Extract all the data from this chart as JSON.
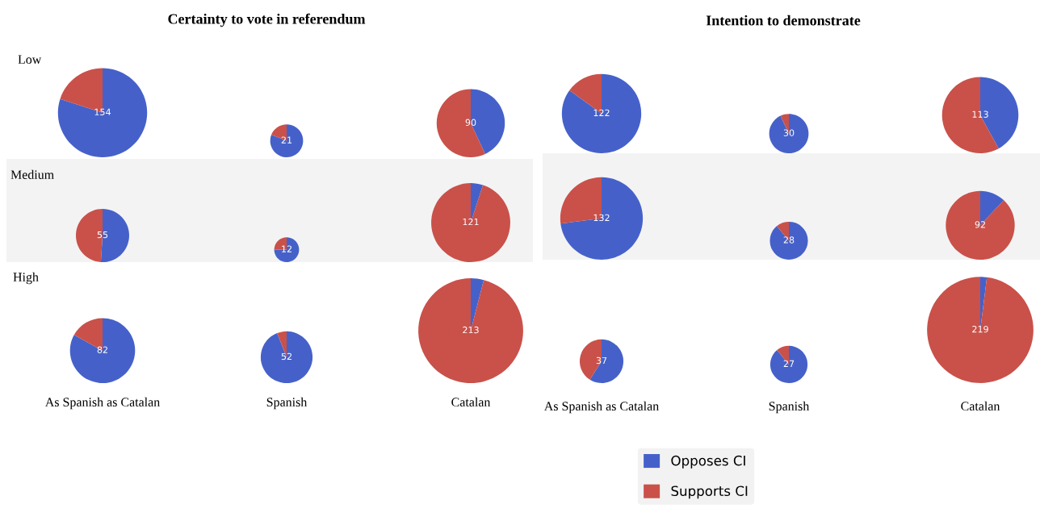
{
  "chart_data": [
    {
      "type": "other",
      "title": "Certainty to vote in referendum",
      "categories": [
        "As Spanish as Catalan",
        "Spanish",
        "Catalan"
      ],
      "annotations": [
        "Low",
        "Medium",
        "High"
      ]
    },
    {
      "type": "pie",
      "categories": [
        "Opposes CI",
        "Supports CI"
      ],
      "values": [
        80,
        20
      ],
      "colors": [
        "#4561c9",
        "#c9514a"
      ],
      "annotations": [
        "154"
      ],
      "legend": "bottom"
    },
    {
      "type": "pie",
      "categories": [
        null,
        null
      ],
      "values": [
        81,
        19
      ],
      "colors": [
        "#4561c9",
        "#c9514a"
      ],
      "annotations": [
        "21"
      ]
    },
    {
      "type": "pie",
      "categories": [
        null,
        null
      ],
      "values": [
        43,
        57
      ],
      "colors": [
        "#4561c9",
        "#c9514a"
      ],
      "annotations": [
        "90"
      ]
    },
    {
      "type": "pie",
      "categories": [
        null,
        null
      ],
      "values": [
        51,
        49
      ],
      "colors": [
        "#4561c9",
        "#c9514a"
      ],
      "annotations": [
        "55"
      ]
    },
    {
      "type": "pie",
      "categories": [
        null,
        null
      ],
      "values": [
        75,
        25
      ],
      "colors": [
        "#4561c9",
        "#c9514a"
      ],
      "annotations": [
        "12"
      ]
    },
    {
      "type": "pie",
      "categories": [
        null,
        null
      ],
      "values": [
        5,
        95
      ],
      "colors": [
        "#4561c9",
        "#c9514a"
      ],
      "annotations": [
        "121"
      ]
    },
    {
      "type": "pie",
      "categories": [
        null,
        null
      ],
      "values": [
        83,
        17
      ],
      "colors": [
        "#4561c9",
        "#c9514a"
      ],
      "annotations": [
        "82"
      ]
    },
    {
      "type": "pie",
      "categories": [
        null,
        null
      ],
      "values": [
        94,
        6
      ],
      "colors": [
        "#4561c9",
        "#c9514a"
      ],
      "annotations": [
        "52"
      ]
    },
    {
      "type": "pie",
      "categories": [
        null,
        null
      ],
      "values": [
        4,
        96
      ],
      "colors": [
        "#4561c9",
        "#c9514a"
      ],
      "annotations": [
        "213"
      ]
    },
    {
      "type": "other",
      "title": "Intention to demonstrate",
      "categories": [
        "As Spanish as Catalan",
        "Spanish",
        "Catalan"
      ]
    },
    {
      "type": "pie",
      "categories": [
        null,
        null
      ],
      "values": [
        85,
        15
      ],
      "colors": [
        "#4561c9",
        "#c9514a"
      ],
      "annotations": [
        "122"
      ]
    },
    {
      "type": "pie",
      "categories": [
        null,
        null
      ],
      "values": [
        93,
        7
      ],
      "colors": [
        "#4561c9",
        "#c9514a"
      ],
      "annotations": [
        "30"
      ]
    },
    {
      "type": "pie",
      "categories": [
        null,
        null
      ],
      "values": [
        42,
        58
      ],
      "colors": [
        "#4561c9",
        "#c9514a"
      ],
      "annotations": [
        "113"
      ]
    },
    {
      "type": "pie",
      "categories": [
        null,
        null
      ],
      "values": [
        73,
        27
      ],
      "colors": [
        "#4561c9",
        "#c9514a"
      ],
      "annotations": [
        "132"
      ]
    },
    {
      "type": "pie",
      "categories": [
        null,
        null
      ],
      "values": [
        89,
        11
      ],
      "colors": [
        "#4561c9",
        "#c9514a"
      ],
      "annotations": [
        "28"
      ]
    },
    {
      "type": "pie",
      "categories": [
        null,
        null
      ],
      "values": [
        12,
        88
      ],
      "colors": [
        "#4561c9",
        "#c9514a"
      ],
      "annotations": [
        "92"
      ]
    },
    {
      "type": "pie",
      "categories": [
        null,
        null
      ],
      "values": [
        59,
        41
      ],
      "colors": [
        "#4561c9",
        "#c9514a"
      ],
      "annotations": [
        "37"
      ]
    },
    {
      "type": "pie",
      "categories": [
        null,
        null
      ],
      "values": [
        89,
        11
      ],
      "colors": [
        "#4561c9",
        "#c9514a"
      ],
      "annotations": [
        "27"
      ]
    },
    {
      "type": "pie",
      "categories": [
        null,
        null
      ],
      "values": [
        2,
        98
      ],
      "colors": [
        "#4561c9",
        "#c9514a"
      ],
      "annotations": [
        "219"
      ]
    }
  ]
}
